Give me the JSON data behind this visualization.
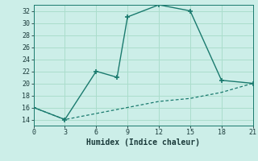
{
  "xlabel": "Humidex (Indice chaleur)",
  "background_color": "#cceee8",
  "grid_color": "#aaddcc",
  "line_color": "#1a7a6e",
  "xlim": [
    0,
    21
  ],
  "ylim": [
    13,
    33
  ],
  "xticks": [
    0,
    3,
    6,
    9,
    12,
    15,
    18,
    21
  ],
  "yticks": [
    14,
    16,
    18,
    20,
    22,
    24,
    26,
    28,
    30,
    32
  ],
  "line1_x": [
    0,
    3,
    6,
    8,
    9,
    12,
    15,
    18,
    21
  ],
  "line1_y": [
    16,
    14,
    22,
    21,
    31,
    33,
    32,
    20.5,
    20
  ],
  "line2_x": [
    0,
    3,
    6,
    9,
    12,
    15,
    18,
    21
  ],
  "line2_y": [
    16,
    14,
    15,
    16,
    17,
    17.5,
    18.5,
    20
  ]
}
